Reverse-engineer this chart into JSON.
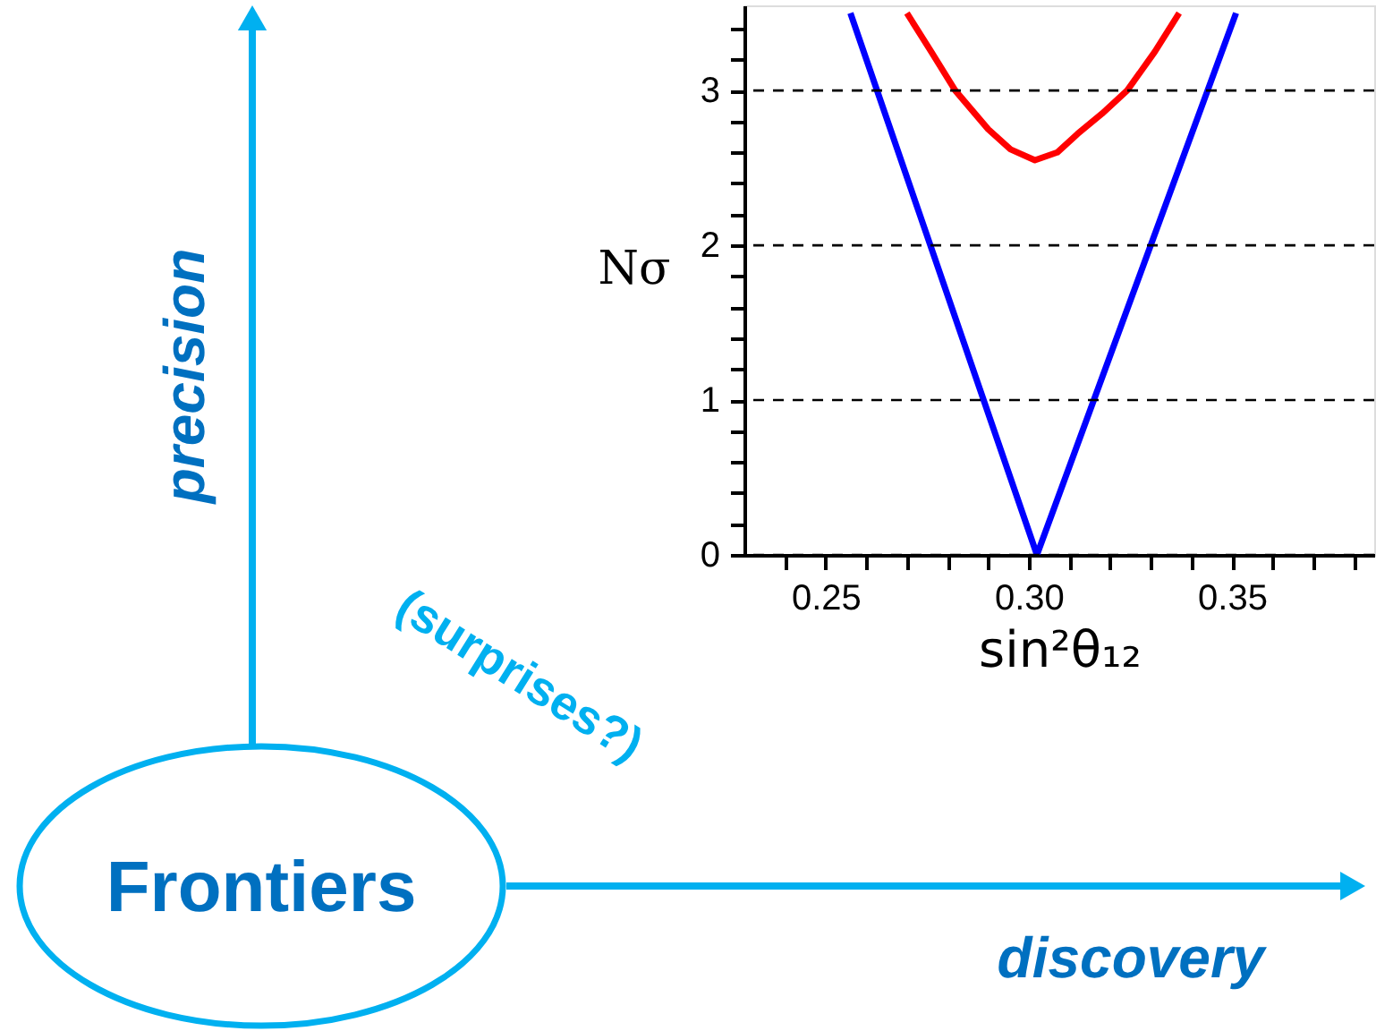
{
  "chart_data": {
    "type": "line",
    "xlabel": "sin²θ₁₂",
    "ylabel": "Nσ",
    "annotations": [
      "Frontiers",
      "precision",
      "discovery",
      "(surprises?)"
    ],
    "series": [
      {
        "color": "#0000ff",
        "x": [
          0.2561,
          0.302,
          0.351
        ],
        "values": [
          3.5,
          0,
          3.5
        ]
      },
      {
        "color": "#ff0000",
        "x": [
          0.27,
          0.276,
          0.2819,
          0.29,
          0.2955,
          0.3015,
          0.307,
          0.312,
          0.318,
          0.3242,
          0.331,
          0.337
        ],
        "values": [
          3.5,
          3.25,
          3.0,
          2.75,
          2.62,
          2.55,
          2.6,
          2.72,
          2.85,
          3.0,
          3.25,
          3.5
        ]
      }
    ],
    "xlim": [
      0.23,
      0.385
    ],
    "ylim": [
      0,
      3.55
    ],
    "xticks": [
      {
        "value": 0.24,
        "label": null
      },
      {
        "value": 0.25,
        "label": "0.25"
      },
      {
        "value": 0.26,
        "label": null
      },
      {
        "value": 0.27,
        "label": null
      },
      {
        "value": 0.28,
        "label": null
      },
      {
        "value": 0.29,
        "label": null
      },
      {
        "value": 0.3,
        "label": "0.30"
      },
      {
        "value": 0.31,
        "label": null
      },
      {
        "value": 0.32,
        "label": null
      },
      {
        "value": 0.33,
        "label": null
      },
      {
        "value": 0.34,
        "label": null
      },
      {
        "value": 0.35,
        "label": "0.35"
      },
      {
        "value": 0.36,
        "label": null
      },
      {
        "value": 0.37,
        "label": null
      },
      {
        "value": 0.38,
        "label": null
      }
    ],
    "yticks": [
      0,
      {
        "value": 0.2,
        "label": null
      },
      {
        "value": 0.4,
        "label": null
      },
      {
        "value": 0.6,
        "label": null
      },
      {
        "value": 0.8,
        "label": null
      },
      1,
      {
        "value": 1.2,
        "label": null
      },
      {
        "value": 1.4,
        "label": null
      },
      {
        "value": 1.6,
        "label": null
      },
      {
        "value": 1.8,
        "label": null
      },
      2,
      {
        "value": 2.2,
        "label": null
      },
      {
        "value": 2.4,
        "label": null
      },
      {
        "value": 2.6,
        "label": null
      },
      {
        "value": 2.8,
        "label": null
      },
      3,
      {
        "value": 3.2,
        "label": null
      },
      {
        "value": 3.4,
        "label": null
      }
    ],
    "grid": "y",
    "line_style": "solid",
    "marker": "none",
    "legend": false
  }
}
